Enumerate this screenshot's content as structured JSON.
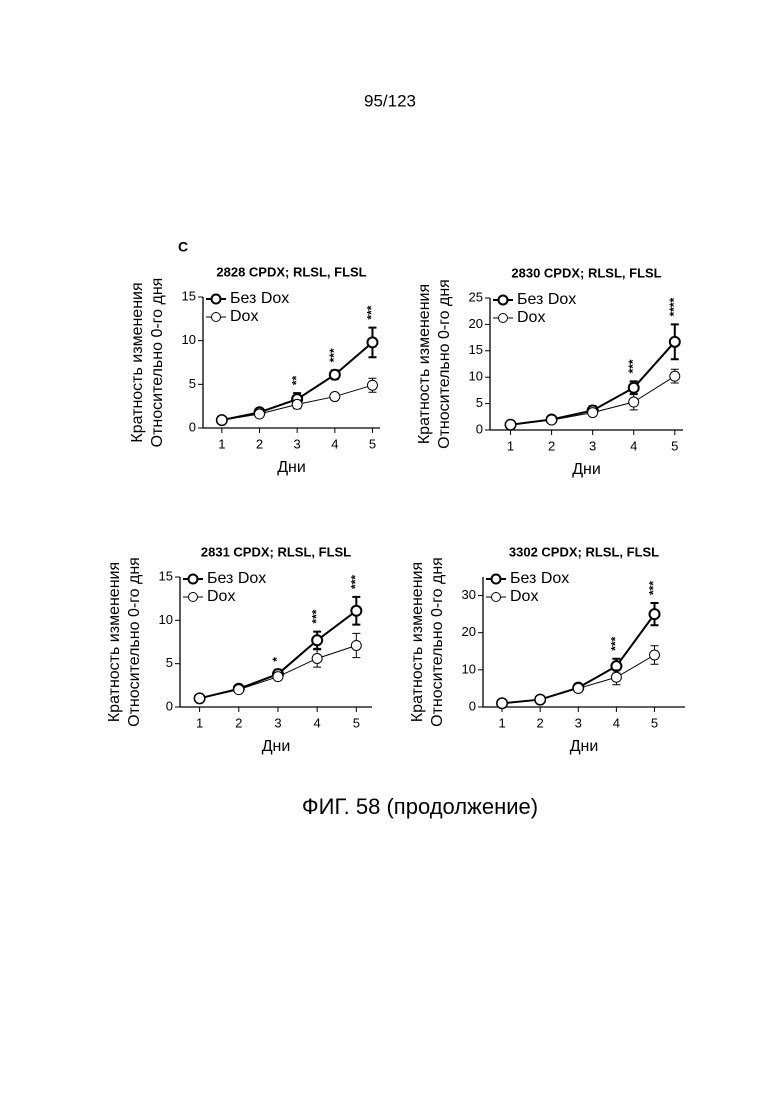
{
  "page_number": "95/123",
  "panel_label": "C",
  "caption": "ФИГ. 58 (продолжение)",
  "chart_data": [
    {
      "type": "line",
      "title": "2828 CPDX; RLSL, FLSL",
      "ylabel": [
        "Кратность изменения",
        "Относительно 0-го дня"
      ],
      "xlabel": "Дни",
      "x": [
        1,
        2,
        3,
        4,
        5
      ],
      "xlim": [
        0.5,
        5.2
      ],
      "xticks": [
        1,
        2,
        3,
        4,
        5
      ],
      "ylim": [
        0,
        15
      ],
      "yticks": [
        0,
        5,
        10,
        15
      ],
      "series": [
        {
          "name": "Без Dox",
          "color": "#000000",
          "values": [
            0.9,
            1.8,
            3.3,
            6.1,
            9.8
          ],
          "errors": [
            0.2,
            0.4,
            0.7,
            0.5,
            1.7
          ]
        },
        {
          "name": "Dox",
          "color": "#000000",
          "values": [
            0.9,
            1.6,
            2.7,
            3.6,
            4.9
          ],
          "errors": [
            0.2,
            0.3,
            0.5,
            0.4,
            0.8
          ]
        }
      ],
      "annotations": [
        {
          "x": 3,
          "text": "**"
        },
        {
          "x": 4,
          "text": "***"
        },
        {
          "x": 5,
          "text": "***"
        }
      ]
    },
    {
      "type": "line",
      "title": "2830 CPDX; RLSL, FLSL",
      "ylabel": [
        "Кратность изменения",
        "Относительно 0-го дня"
      ],
      "xlabel": "Дни",
      "x": [
        1,
        2,
        3,
        4,
        5
      ],
      "xlim": [
        0.5,
        5.2
      ],
      "xticks": [
        1,
        2,
        3,
        4,
        5
      ],
      "ylim": [
        0,
        25
      ],
      "yticks": [
        0,
        5,
        10,
        15,
        20,
        25
      ],
      "series": [
        {
          "name": "Без Dox",
          "color": "#000000",
          "values": [
            1.0,
            2.0,
            3.7,
            8.0,
            16.7
          ],
          "errors": [
            0.3,
            0.4,
            0.8,
            1.2,
            3.3
          ]
        },
        {
          "name": "Dox",
          "color": "#000000",
          "values": [
            1.0,
            1.9,
            3.3,
            5.3,
            10.2
          ],
          "errors": [
            0.3,
            0.3,
            0.6,
            1.5,
            1.3
          ]
        }
      ],
      "annotations": [
        {
          "x": 4,
          "text": "***"
        },
        {
          "x": 5,
          "text": "****"
        }
      ]
    },
    {
      "type": "line",
      "title": "2831 CPDX; RLSL, FLSL",
      "ylabel": [
        "Кратность изменения",
        "Относительно 0-го дня"
      ],
      "xlabel": "Дни",
      "x": [
        1,
        2,
        3,
        4,
        5
      ],
      "xlim": [
        0.5,
        5.4
      ],
      "xticks": [
        1,
        2,
        3,
        4,
        5
      ],
      "ylim": [
        0,
        15
      ],
      "yticks": [
        0,
        5,
        10,
        15
      ],
      "series": [
        {
          "name": "Без Dox",
          "color": "#000000",
          "values": [
            1.0,
            2.1,
            3.8,
            7.7,
            11.1
          ],
          "errors": [
            0.2,
            0.3,
            0.5,
            1.0,
            1.6
          ]
        },
        {
          "name": "Dox",
          "color": "#000000",
          "values": [
            1.0,
            2.0,
            3.5,
            5.6,
            7.1
          ],
          "errors": [
            0.2,
            0.3,
            0.4,
            1.0,
            1.4
          ]
        }
      ],
      "annotations": [
        {
          "x": 3,
          "text": "*"
        },
        {
          "x": 4,
          "text": "***"
        },
        {
          "x": 5,
          "text": "***"
        }
      ]
    },
    {
      "type": "line",
      "title": "3302 CPDX; RLSL, FLSL",
      "ylabel": [
        "Кратность изменения",
        "Относительно 0-го дня"
      ],
      "xlabel": "Дни",
      "x": [
        1,
        2,
        3,
        4,
        5
      ],
      "xlim": [
        0.5,
        5.8
      ],
      "xticks": [
        1,
        2,
        3,
        4,
        5
      ],
      "ylim": [
        0,
        35
      ],
      "yticks": [
        0,
        10,
        20,
        30
      ],
      "series": [
        {
          "name": "Без Dox",
          "color": "#000000",
          "values": [
            1.0,
            2.0,
            5.2,
            11.0,
            25.0
          ],
          "errors": [
            0.3,
            1.0,
            1.0,
            2.0,
            3.0
          ]
        },
        {
          "name": "Dox",
          "color": "#000000",
          "values": [
            1.0,
            2.0,
            5.0,
            8.0,
            14.0
          ],
          "errors": [
            0.3,
            0.8,
            0.8,
            2.0,
            2.5
          ]
        }
      ],
      "annotations": [
        {
          "x": 4,
          "text": "***"
        },
        {
          "x": 5,
          "text": "***"
        }
      ]
    }
  ]
}
